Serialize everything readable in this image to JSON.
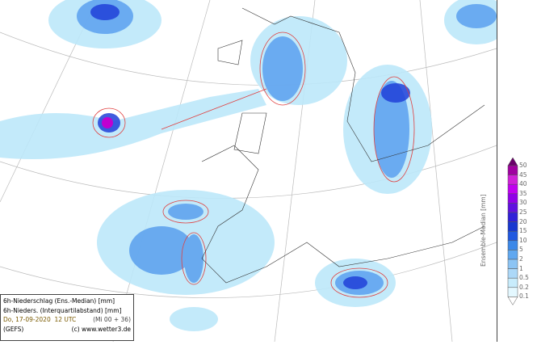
{
  "info": {
    "line1": "6h-Niederschlag (Ens.-Median) [mm]",
    "line2": "6h-Nieders. (Interquartilabstand) [mm]",
    "date": "Do, 17-09-2020",
    "time": "12 UTC",
    "run": "(Mi 00 + 36)",
    "model": "(GEFS)",
    "copyright": "(c) www.wetter3.de"
  },
  "legend": {
    "title": "Ensemble-Median [mm]",
    "levels": [
      "50",
      "45",
      "40",
      "35",
      "30",
      "25",
      "20",
      "15",
      "10",
      "5",
      "2",
      "1",
      "0.5",
      "0.2",
      "0.1"
    ],
    "colors": [
      "#6a006a",
      "#a000a0",
      "#d020d8",
      "#c000f0",
      "#9000e8",
      "#6010e0",
      "#3020d8",
      "#1838d0",
      "#2058e0",
      "#3c88e8",
      "#60a8f0",
      "#8cc4f4",
      "#acd8f8",
      "#c8ecfc",
      "#e4f8ff"
    ]
  }
}
